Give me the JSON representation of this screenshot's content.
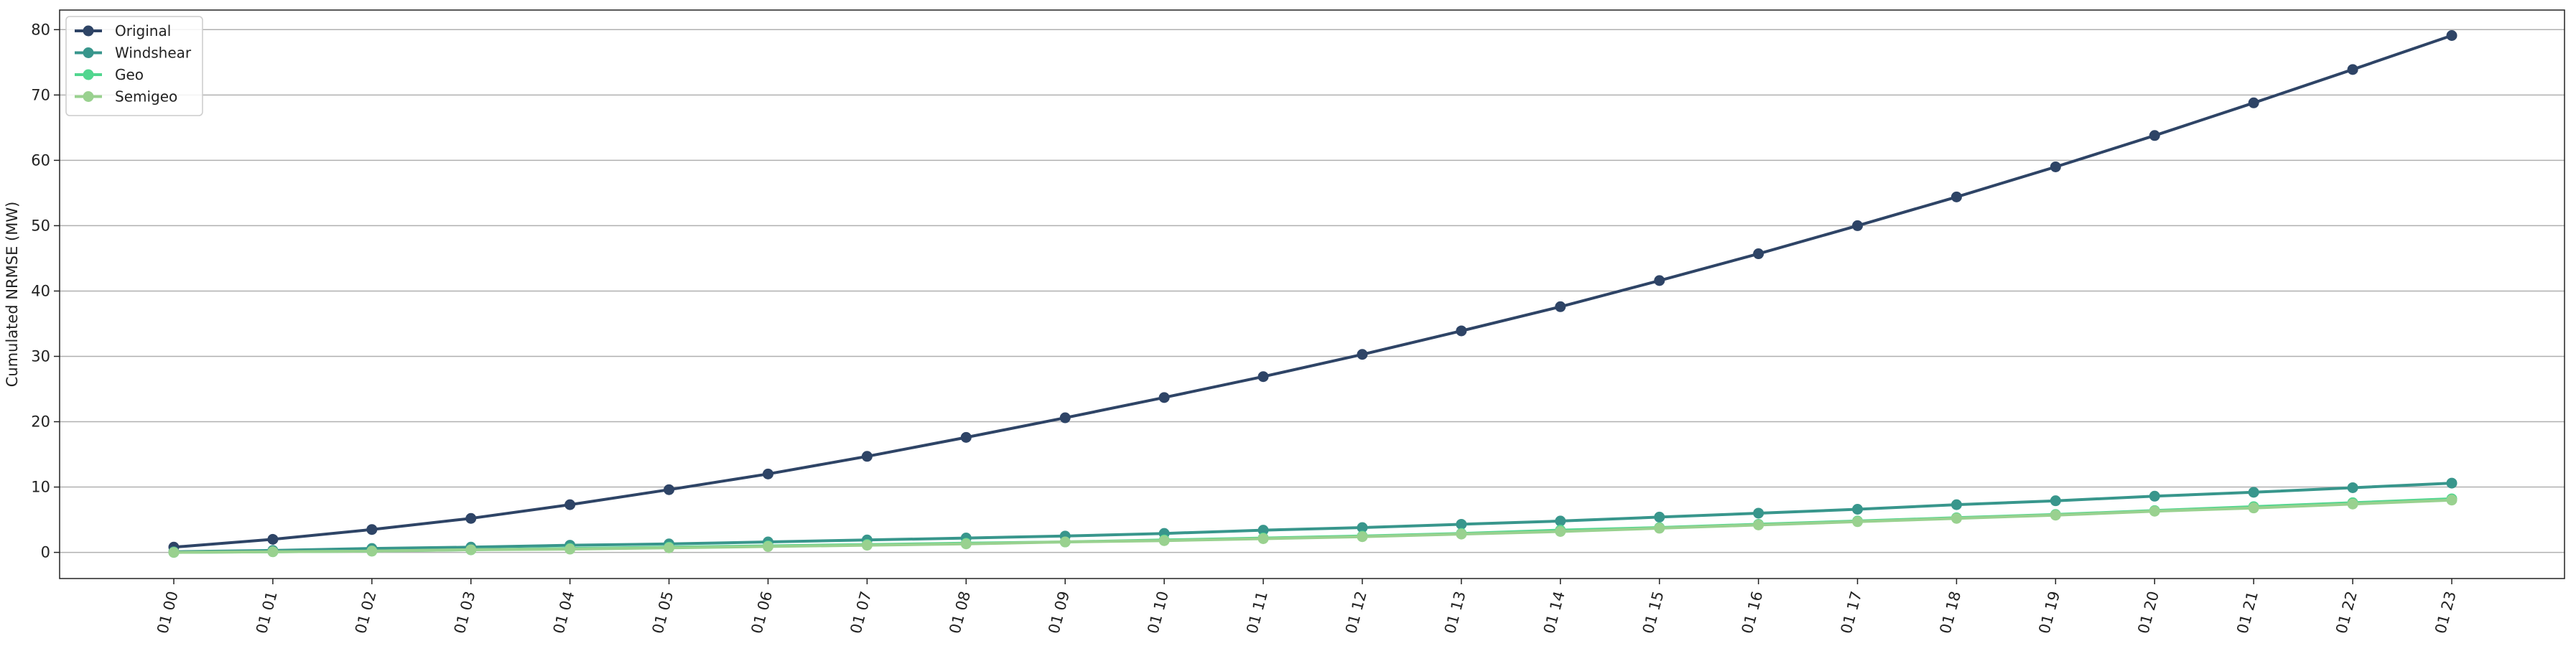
{
  "chart_data": {
    "type": "line",
    "title": "",
    "xlabel": "",
    "ylabel": "Cumulated NRMSE (MW)",
    "categories": [
      "01 00",
      "01 01",
      "01 02",
      "01 03",
      "01 04",
      "01 05",
      "01 06",
      "01 07",
      "01 08",
      "01 09",
      "01 10",
      "01 11",
      "01 12",
      "01 13",
      "01 14",
      "01 15",
      "01 16",
      "01 17",
      "01 18",
      "01 19",
      "01 20",
      "01 21",
      "01 22",
      "01 23"
    ],
    "ylim": [
      -4,
      83
    ],
    "yticks": [
      0,
      10,
      20,
      30,
      40,
      50,
      60,
      70,
      80
    ],
    "grid": "horizontal",
    "legend_position": "top-left",
    "series": [
      {
        "name": "Original",
        "color": "#2e4466",
        "values": [
          0.8,
          2.0,
          3.5,
          5.2,
          7.3,
          9.6,
          12.0,
          14.7,
          17.6,
          20.6,
          23.7,
          26.9,
          30.3,
          33.9,
          37.6,
          41.6,
          45.7,
          50.0,
          54.4,
          59.0,
          63.8,
          68.8,
          73.9,
          79.1
        ]
      },
      {
        "name": "Windshear",
        "color": "#38968c",
        "values": [
          0.1,
          0.3,
          0.6,
          0.8,
          1.1,
          1.3,
          1.6,
          1.9,
          2.2,
          2.5,
          2.9,
          3.4,
          3.8,
          4.3,
          4.8,
          5.4,
          6.0,
          6.6,
          7.3,
          7.9,
          8.6,
          9.2,
          9.9,
          10.6
        ]
      },
      {
        "name": "Geo",
        "color": "#52d68f",
        "values": [
          0.0,
          0.1,
          0.2,
          0.4,
          0.6,
          0.8,
          1.0,
          1.2,
          1.4,
          1.6,
          1.9,
          2.2,
          2.5,
          2.9,
          3.4,
          3.8,
          4.3,
          4.8,
          5.3,
          5.8,
          6.4,
          7.0,
          7.6,
          8.2
        ]
      },
      {
        "name": "Semigeo",
        "color": "#99d18f",
        "values": [
          0.0,
          0.1,
          0.2,
          0.4,
          0.5,
          0.7,
          0.9,
          1.1,
          1.3,
          1.6,
          1.8,
          2.1,
          2.4,
          2.8,
          3.2,
          3.7,
          4.2,
          4.7,
          5.2,
          5.7,
          6.3,
          6.8,
          7.4,
          8.0
        ]
      }
    ]
  }
}
